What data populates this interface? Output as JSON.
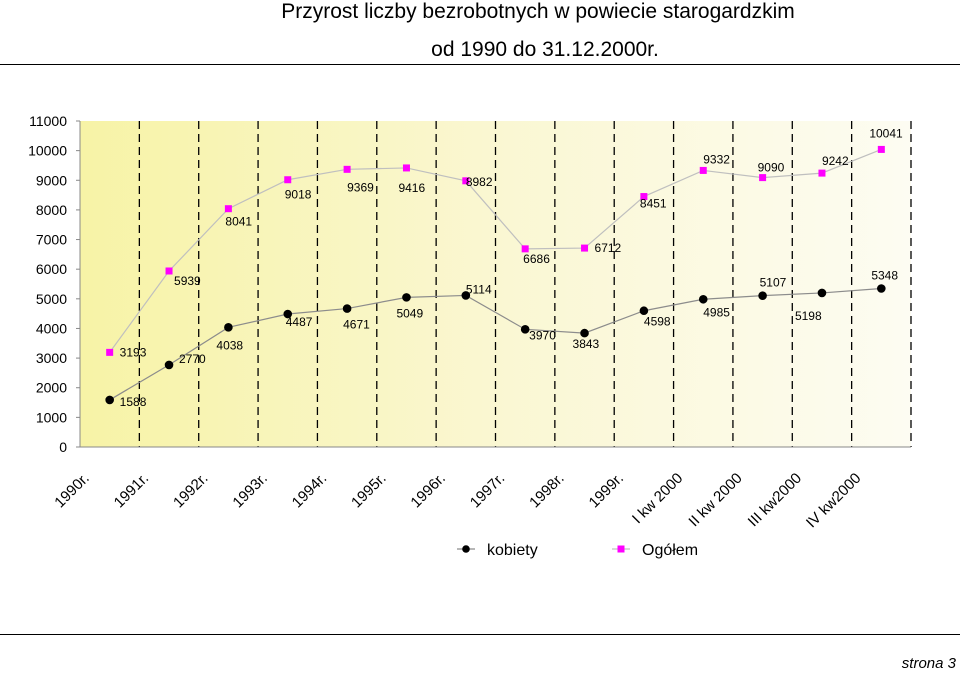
{
  "title_line1": "Przyrost liczby bezrobotnych w powiecie starogardzkim",
  "title_line2": "od 1990 do 31.12.2000r.",
  "footer": "strona  3",
  "chart_data": {
    "type": "line",
    "categories": [
      "1990r.",
      "1991r.",
      "1992r.",
      "1993r.",
      "1994r.",
      "1995r.",
      "1996r.",
      "1997r.",
      "1998r.",
      "1999r.",
      "I kw 2000",
      "II kw 2000",
      "III kw2000",
      "IV kw2000"
    ],
    "series": [
      {
        "name": "kobiety",
        "values": [
          1588,
          2770,
          4038,
          4487,
          4671,
          5049,
          5114,
          3970,
          3843,
          4598,
          4985,
          5107,
          5198,
          5348
        ],
        "color": "#000000",
        "marker": "circle"
      },
      {
        "name": "Ogółem",
        "values": [
          3193,
          5939,
          8041,
          9018,
          9369,
          9416,
          8982,
          6686,
          6712,
          8451,
          9332,
          9090,
          9242,
          10041
        ],
        "color": "#ff00ff",
        "marker": "square"
      }
    ],
    "yticks": [
      "0",
      "1000",
      "2000",
      "3000",
      "4000",
      "5000",
      "6000",
      "7000",
      "8000",
      "9000",
      "10000",
      "11000"
    ],
    "ylim": [
      0,
      11000
    ],
    "xlabel": "",
    "ylabel": "",
    "grid": "vertical dashed",
    "legend_position": "bottom",
    "background": "gradient pale yellow"
  }
}
